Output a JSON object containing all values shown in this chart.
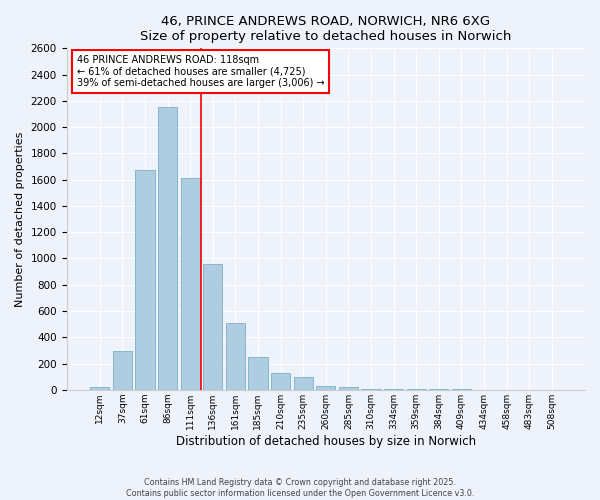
{
  "title": "46, PRINCE ANDREWS ROAD, NORWICH, NR6 6XG",
  "subtitle": "Size of property relative to detached houses in Norwich",
  "xlabel": "Distribution of detached houses by size in Norwich",
  "ylabel": "Number of detached properties",
  "bar_labels": [
    "12sqm",
    "37sqm",
    "61sqm",
    "86sqm",
    "111sqm",
    "136sqm",
    "161sqm",
    "185sqm",
    "210sqm",
    "235sqm",
    "260sqm",
    "285sqm",
    "310sqm",
    "334sqm",
    "359sqm",
    "384sqm",
    "409sqm",
    "434sqm",
    "458sqm",
    "483sqm",
    "508sqm"
  ],
  "bar_values": [
    20,
    295,
    1670,
    2150,
    1615,
    960,
    510,
    250,
    130,
    100,
    30,
    25,
    5,
    5,
    5,
    5,
    3,
    2,
    2,
    2,
    2
  ],
  "bar_color": "#aecde0",
  "bar_edge_color": "#7aaec8",
  "vline_x": 4.5,
  "vline_color": "red",
  "annotation_text": "46 PRINCE ANDREWS ROAD: 118sqm\n← 61% of detached houses are smaller (4,725)\n39% of semi-detached houses are larger (3,006) →",
  "annotation_box_color": "white",
  "annotation_box_edge": "red",
  "ylim": [
    0,
    2600
  ],
  "yticks": [
    0,
    200,
    400,
    600,
    800,
    1000,
    1200,
    1400,
    1600,
    1800,
    2000,
    2200,
    2400,
    2600
  ],
  "bg_color": "#eef2fa",
  "grid_color": "white",
  "footer_line1": "Contains HM Land Registry data © Crown copyright and database right 2025.",
  "footer_line2": "Contains public sector information licensed under the Open Government Licence v3.0."
}
